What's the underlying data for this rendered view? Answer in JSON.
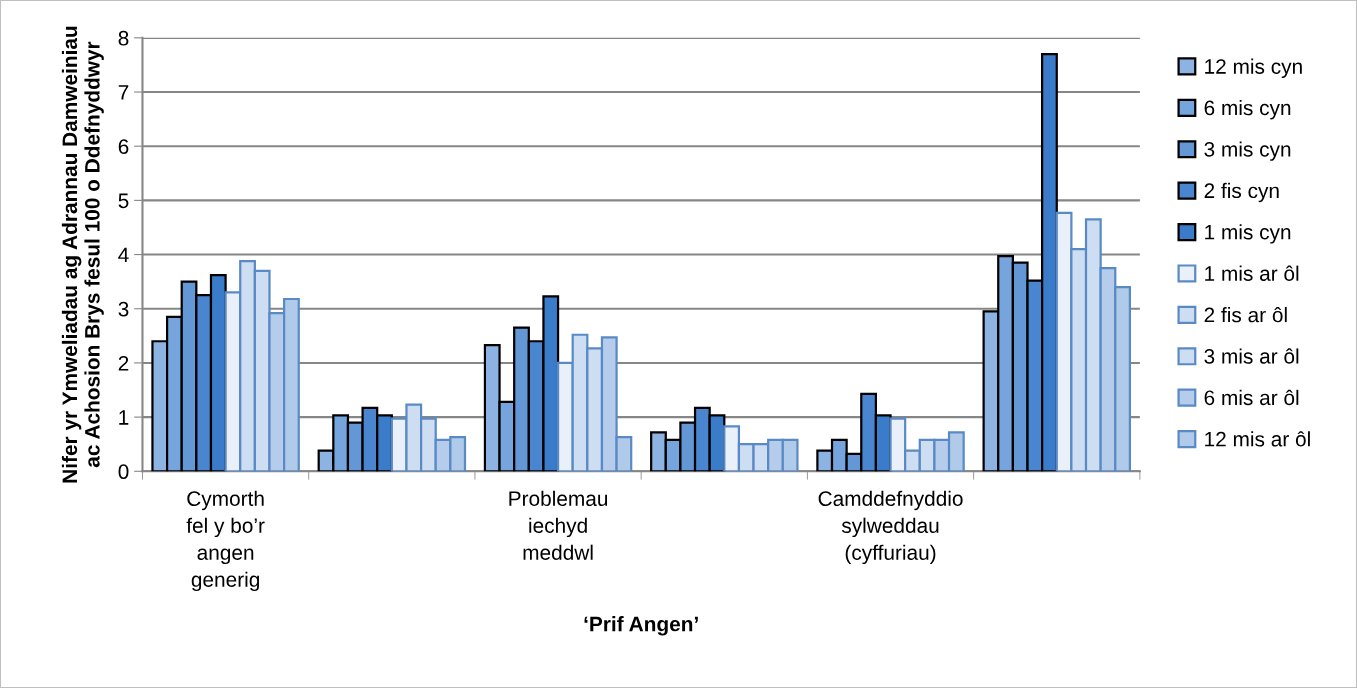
{
  "chart_data": {
    "type": "bar",
    "xlabel": "‘Prif Angen’",
    "ylabel": "Nifer yr Ymweliadau ag Adrannau Damweiniau\nac Achosion Brys fesul 100 o Ddefnyddwyr",
    "categories": [
      "Cymorth\nfel y bo’r\nangen\ngenerig",
      null,
      "Problemau\niechyd\nmeddwl",
      null,
      "Camddefnyddio\nsylweddau\n(cyffuriau)",
      null
    ],
    "series": [
      {
        "name": "12 mis cyn",
        "color": "#8db3e2",
        "values": [
          2.4,
          0.38,
          2.33,
          0.72,
          0.38,
          2.95
        ]
      },
      {
        "name": "6 mis cyn",
        "color": "#75a5dc",
        "values": [
          2.85,
          1.03,
          1.28,
          0.58,
          0.58,
          3.97
        ]
      },
      {
        "name": "3 mis cyn",
        "color": "#6497d6",
        "values": [
          3.5,
          0.9,
          2.65,
          0.9,
          0.32,
          3.85
        ]
      },
      {
        "name": "2 fis cyn",
        "color": "#4a86d0",
        "values": [
          3.25,
          1.17,
          2.4,
          1.17,
          1.43,
          3.52
        ]
      },
      {
        "name": "1 mis cyn",
        "color": "#3a7bca",
        "values": [
          3.62,
          1.03,
          3.23,
          1.03,
          1.03,
          7.7
        ]
      },
      {
        "name": "1 mis ar ôl",
        "color": "#e9f0fa",
        "values": [
          3.3,
          0.97,
          2.0,
          0.83,
          0.97,
          4.77
        ]
      },
      {
        "name": "2 fis ar ôl",
        "color": "#cddef2",
        "values": [
          3.88,
          1.23,
          2.52,
          0.5,
          0.38,
          4.1
        ]
      },
      {
        "name": "3 mis ar ôl",
        "color": "#cddef2",
        "values": [
          3.7,
          0.97,
          2.27,
          0.5,
          0.58,
          4.65
        ]
      },
      {
        "name": "6 mis ar ôl",
        "color": "#b5cdeb",
        "values": [
          2.92,
          0.58,
          2.47,
          0.58,
          0.58,
          3.75
        ]
      },
      {
        "name": "12 mis ar ôl",
        "color": "#b0caea",
        "values": [
          3.18,
          0.63,
          0.63,
          0.58,
          0.72,
          3.4
        ]
      }
    ],
    "ylim": [
      0,
      8
    ],
    "yticks": [
      0,
      1,
      2,
      3,
      4,
      5,
      6,
      7,
      8
    ],
    "grid": "y",
    "legend": "right"
  }
}
